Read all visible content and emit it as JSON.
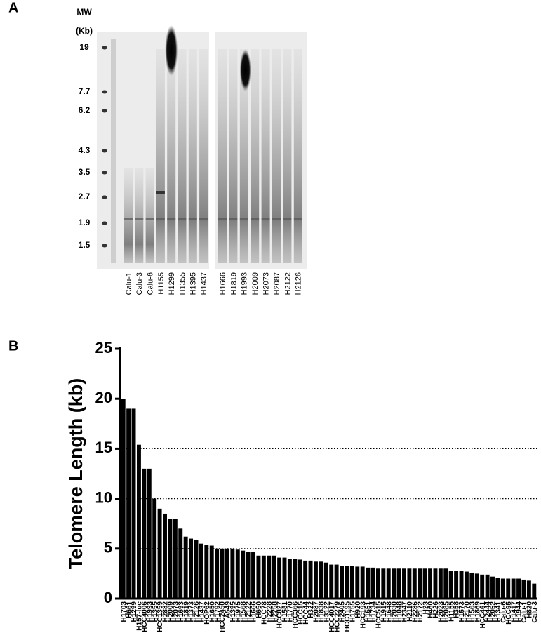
{
  "panel_a": {
    "label": "A",
    "mw_header": "MW",
    "unit": "(Kb)",
    "markers": [
      "19",
      "7.7",
      "6.2",
      "4.3",
      "3.5",
      "2.7",
      "1.9",
      "1.5"
    ],
    "lanes": [
      "Calu-1",
      "Calu-3",
      "Calu-6",
      "H1155",
      "H1299",
      "H1355",
      "H1395",
      "H1437",
      "H1666",
      "H1819",
      "H1993",
      "H2009",
      "H2073",
      "H2087",
      "H2122",
      "H2126"
    ]
  },
  "chart_data": {
    "type": "bar",
    "panel_label": "B",
    "y_label": "Telomere Length (kb)",
    "color": "#000000",
    "categories": [
      "H1703",
      "H661",
      "H1299",
      "H157-luc",
      "HCC4006",
      "H1993",
      "H1355",
      "HCC1359",
      "H2882",
      "H2009",
      "H2073",
      "H1693",
      "H1819",
      "H1373",
      "H2126",
      "H1437",
      "HOP62",
      "H1650",
      "H1792",
      "HCC2450",
      "A549",
      "H1395",
      "H1975",
      "H1568",
      "H2122",
      "H1666",
      "H650",
      "HCC78",
      "H2228",
      "H2258",
      "HCC827",
      "H1581",
      "H1770",
      "HCC366",
      "HCC15",
      "HCC44",
      "H322",
      "H2087",
      "H1838",
      "H3122",
      "HCC4017",
      "HCC2279",
      "H2405",
      "HCC1195",
      "H1755",
      "H920",
      "HCC193",
      "H1651",
      "H1734",
      "HCC515",
      "H1915",
      "H1648",
      "H2030",
      "H1048",
      "H2347",
      "H2110",
      "H2286",
      "H2172",
      "H23",
      "H460",
      "H226",
      "H2023",
      "H2085",
      "H1155",
      "H358",
      "H1573",
      "H2170",
      "H1563",
      "H1869",
      "HCC461",
      "H2444",
      "H2052",
      "H1341",
      "Calu-6",
      "HCC95",
      "H1417",
      "H1944",
      "Calu-1",
      "H820",
      "Calu-3"
    ],
    "values": [
      20,
      19,
      19,
      15.4,
      13,
      13,
      10,
      9,
      8.5,
      8,
      8,
      7,
      6.2,
      6,
      5.9,
      5.5,
      5.4,
      5.3,
      5,
      5,
      5,
      5,
      4.9,
      4.8,
      4.7,
      4.7,
      4.3,
      4.3,
      4.3,
      4.3,
      4.1,
      4.1,
      4,
      4,
      3.9,
      3.8,
      3.8,
      3.7,
      3.7,
      3.6,
      3.4,
      3.4,
      3.3,
      3.3,
      3.3,
      3.2,
      3.2,
      3.1,
      3.1,
      3,
      3,
      3,
      3,
      3,
      3,
      3,
      3,
      3,
      3,
      3,
      3,
      3,
      3,
      2.8,
      2.8,
      2.8,
      2.7,
      2.6,
      2.5,
      2.4,
      2.4,
      2.2,
      2.1,
      2,
      2,
      2,
      2,
      1.9,
      1.8,
      1.5
    ],
    "ylim": [
      0,
      25
    ],
    "yticks": [
      0,
      5,
      10,
      15,
      20,
      25
    ],
    "gridlines": [
      5,
      10,
      15
    ]
  }
}
